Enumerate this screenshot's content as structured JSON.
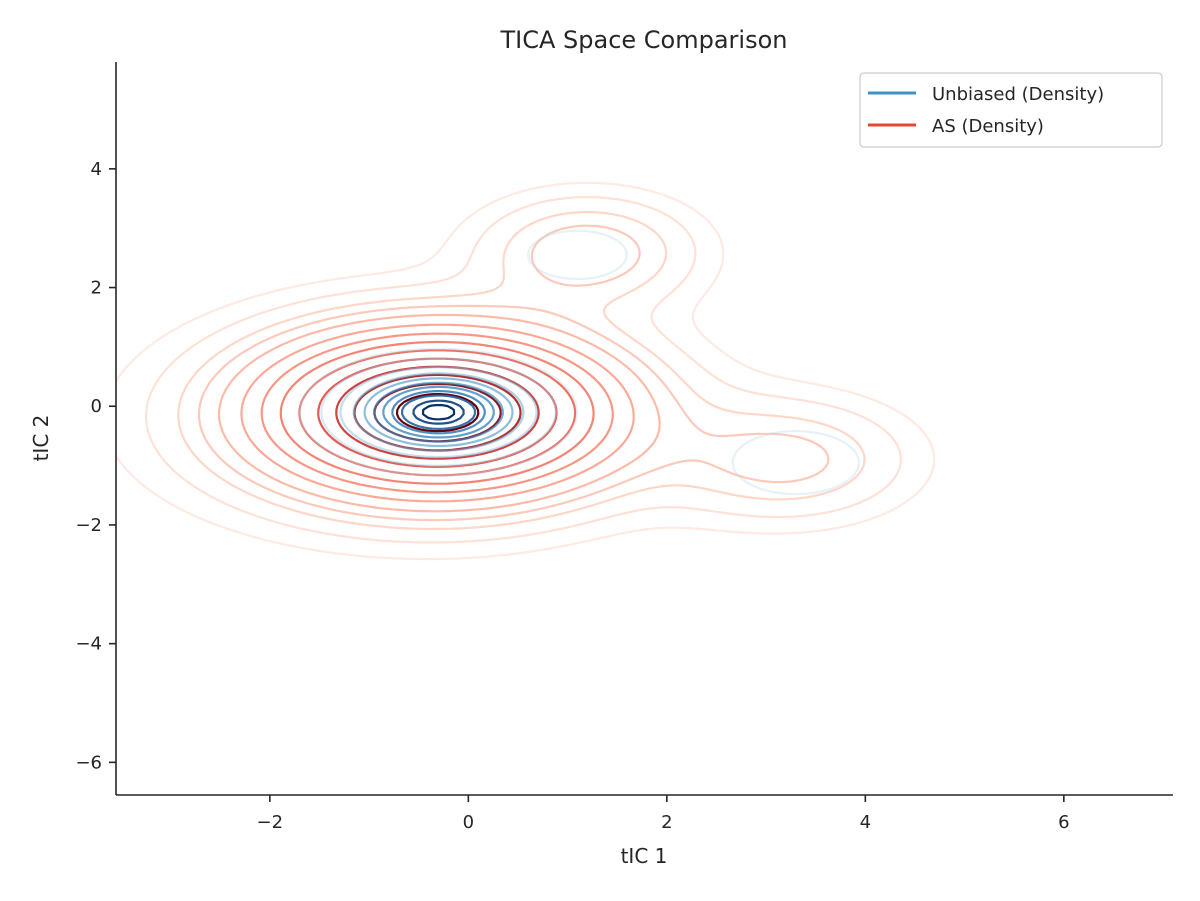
{
  "chart_data": {
    "type": "contour",
    "title": "TICA Space Comparison",
    "xlabel": "tIC 1",
    "ylabel": "tIC 2",
    "xlim": [
      -3.55,
      7.1
    ],
    "ylim": [
      -6.55,
      5.8
    ],
    "x_ticks": [
      -2,
      0,
      2,
      4,
      6
    ],
    "y_ticks": [
      -6,
      -4,
      -2,
      0,
      2,
      4
    ],
    "x_tick_labels": [
      "−2",
      "0",
      "2",
      "4",
      "6"
    ],
    "y_tick_labels": [
      "−6",
      "−4",
      "−2",
      "0",
      "2",
      "4"
    ],
    "grid": false,
    "legend_position": "top-right",
    "series": [
      {
        "name": "Unbiased (Density)",
        "legend_color": "#4292c6",
        "colormap": "Blues",
        "components": [
          {
            "cx": -0.3,
            "cy": -0.1,
            "sx": 0.55,
            "sy": 0.42,
            "w": 1.0
          },
          {
            "cx": 1.1,
            "cy": 2.55,
            "sx": 0.55,
            "sy": 0.45,
            "w": 0.06
          },
          {
            "cx": 3.3,
            "cy": -0.95,
            "sx": 0.6,
            "sy": 0.5,
            "w": 0.07
          }
        ],
        "levels": [
          0.04,
          0.1,
          0.2,
          0.3,
          0.4,
          0.5,
          0.6,
          0.7,
          0.8,
          0.9,
          0.96
        ]
      },
      {
        "name": "AS (Density)",
        "legend_color": "#e34a33",
        "colormap": "Reds",
        "components": [
          {
            "cx": -0.3,
            "cy": -0.1,
            "sx": 1.05,
            "sy": 0.8,
            "w": 1.0
          },
          {
            "cx": 1.2,
            "cy": 2.6,
            "sx": 0.7,
            "sy": 0.6,
            "w": 0.14
          },
          {
            "cx": 3.2,
            "cy": -0.9,
            "sx": 0.8,
            "sy": 0.65,
            "w": 0.12
          },
          {
            "cx": -0.6,
            "cy": -0.3,
            "sx": 1.7,
            "sy": 1.2,
            "w": 0.08
          }
        ],
        "levels": [
          0.02,
          0.04,
          0.07,
          0.1,
          0.14,
          0.2,
          0.27,
          0.35,
          0.44,
          0.54,
          0.64,
          0.74,
          0.84,
          0.93
        ]
      }
    ]
  }
}
